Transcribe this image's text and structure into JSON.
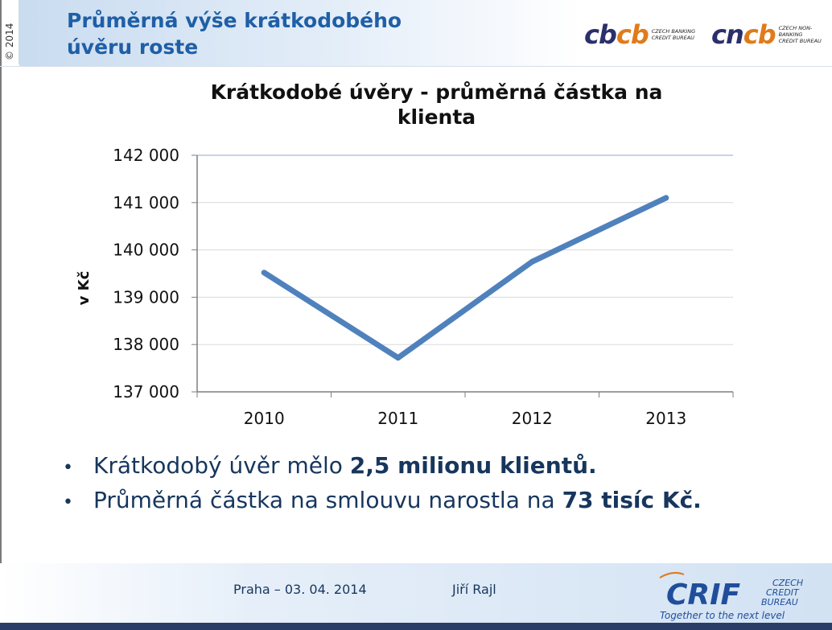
{
  "header": {
    "copyright": "© 2014",
    "title_line1": "Průměrná výše krátkodobého",
    "title_line2": "úvěru roste",
    "logo_cbcb": {
      "mark_a": "cb",
      "mark_b": "cb",
      "line1": "CZECH BANKING",
      "line2": "CREDIT BUREAU"
    },
    "logo_cncb": {
      "mark_a": "cn",
      "mark_b": "cb",
      "line1": "CZECH NON-BANKING",
      "line2": "CREDIT BUREAU"
    }
  },
  "colors": {
    "title": "#1f5fa6",
    "line": "#4f81bd",
    "accent_orange": "#e07b1b",
    "dark_navy": "#17365d"
  },
  "chart_data": {
    "type": "line",
    "title": "Krátkodobé úvěry - průměrná částka na klienta",
    "title_line1": "Krátkodobé úvěry - průměrná částka na",
    "title_line2": "klienta",
    "ylabel": "v Kč",
    "categories": [
      "2010",
      "2011",
      "2012",
      "2013"
    ],
    "values": [
      139520,
      137720,
      139750,
      141100
    ],
    "ylim": [
      137000,
      142000
    ],
    "yticks": [
      137000,
      138000,
      139000,
      140000,
      141000,
      142000
    ],
    "ytick_labels": [
      "137 000",
      "138 000",
      "139 000",
      "140 000",
      "141 000",
      "142 000"
    ],
    "grid": true
  },
  "bullets": [
    {
      "text": "Krátkodobý úvěr mělo ",
      "bold": "2,5 milionu klientů."
    },
    {
      "text": "Průměrná částka na smlouvu narostla na ",
      "bold": "73 tisíc Kč."
    }
  ],
  "footer": {
    "place_date": "Praha – 03. 04. 2014",
    "author": "Jiří Rajl",
    "crif_name": "CRIF",
    "crif_line1": "CZECH",
    "crif_line2": "CREDIT",
    "crif_line3": "BUREAU",
    "crif_tagline": "Together to the next level"
  }
}
